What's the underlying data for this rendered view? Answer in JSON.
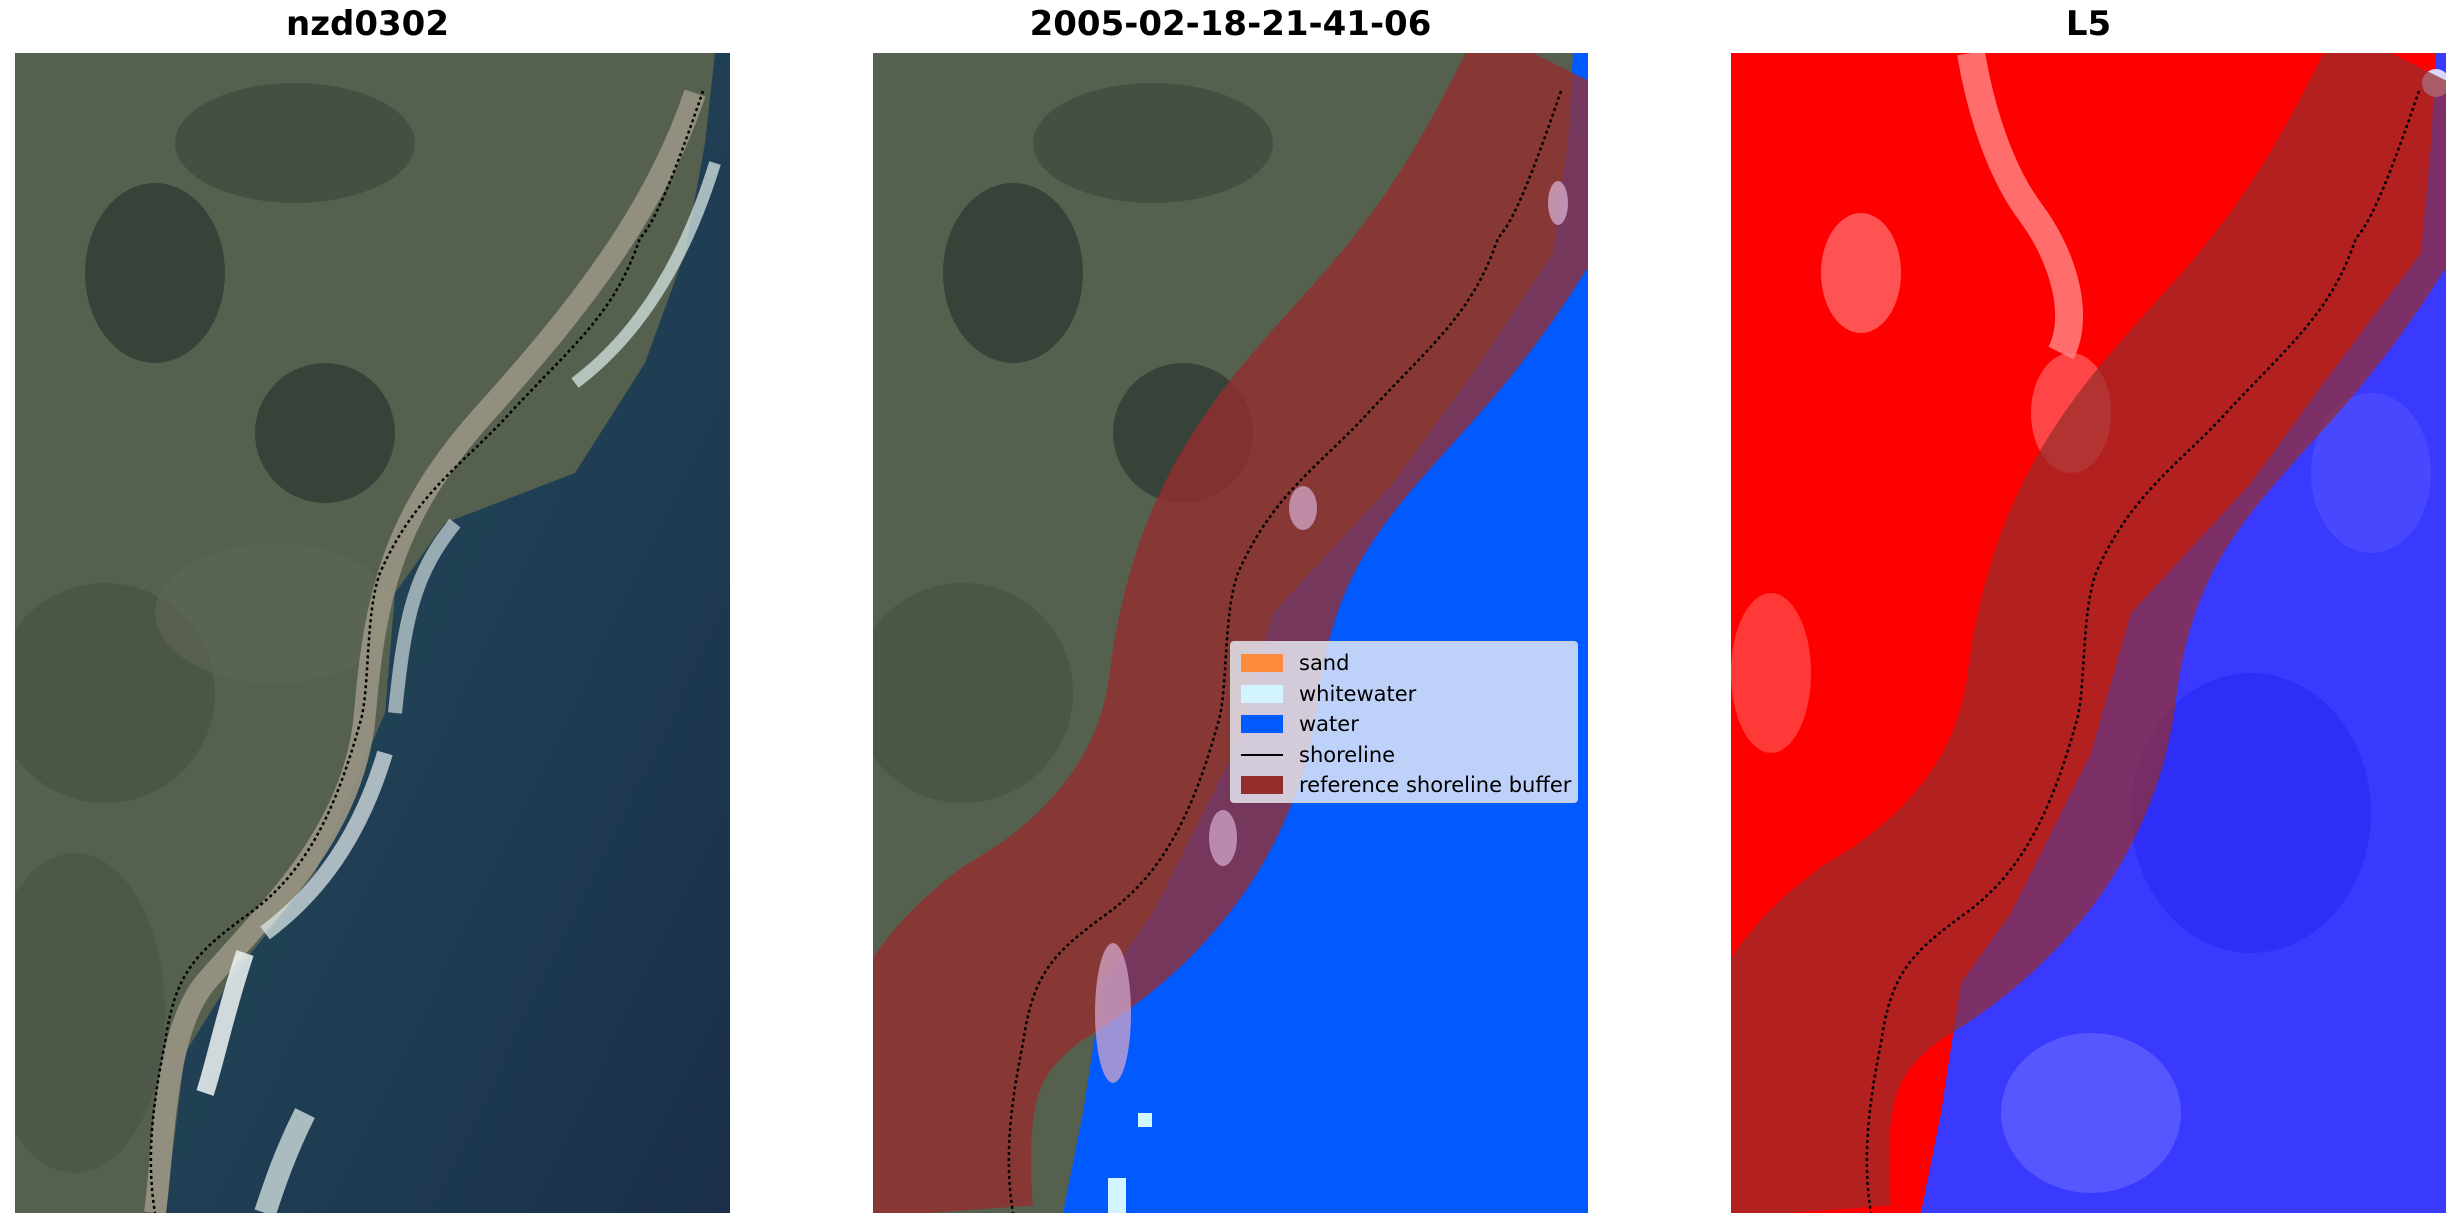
{
  "titles": {
    "left": "nzd0302",
    "middle": "2005-02-18-21-41-06",
    "right": "L5"
  },
  "legend": {
    "items": [
      {
        "label": "sand",
        "color": "#ff8c3c"
      },
      {
        "label": "whitewater",
        "color": "#d2f5ff"
      },
      {
        "label": "water",
        "color": "#005aff"
      },
      {
        "label": "shoreline",
        "color": "#000000"
      },
      {
        "label": "reference shoreline buffer",
        "color": "#962d2d"
      }
    ]
  },
  "colors": {
    "land": "#4e5a4c",
    "ocean": "#1f3f55",
    "classified_water": "#005aff",
    "buffer": "#962d2d",
    "index_land": "#ff0000",
    "index_water": "#3a3aff"
  }
}
